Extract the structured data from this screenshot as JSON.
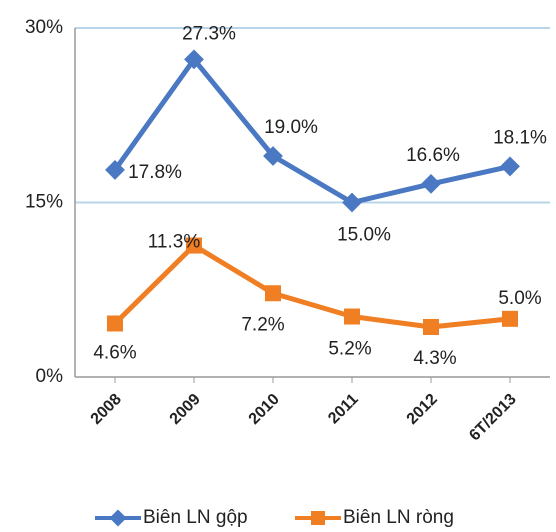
{
  "chart_data": {
    "type": "line",
    "categories": [
      "2008",
      "2009",
      "2010",
      "2011",
      "2012",
      "6T/2013"
    ],
    "series": [
      {
        "name": "Biên LN gộp",
        "color": "#4a78c2",
        "values": [
          17.8,
          27.3,
          19.0,
          15.0,
          16.6,
          18.1
        ],
        "value_labels": [
          "17.8%",
          "27.3%",
          "19.0%",
          "15.0%",
          "16.6%",
          "18.1%"
        ]
      },
      {
        "name": "Biên LN ròng",
        "color": "#f07e22",
        "values": [
          4.6,
          11.3,
          7.2,
          5.2,
          4.3,
          5.0
        ],
        "value_labels": [
          "4.6%",
          "11.3%",
          "7.2%",
          "5.2%",
          "4.3%",
          "5.0%"
        ]
      }
    ],
    "ylim": [
      0,
      30
    ],
    "yticks": [
      {
        "value": 0,
        "label": "0%"
      },
      {
        "value": 15,
        "label": "15%"
      },
      {
        "value": 30,
        "label": "30%"
      }
    ],
    "grid": true,
    "legend": "bottom"
  }
}
